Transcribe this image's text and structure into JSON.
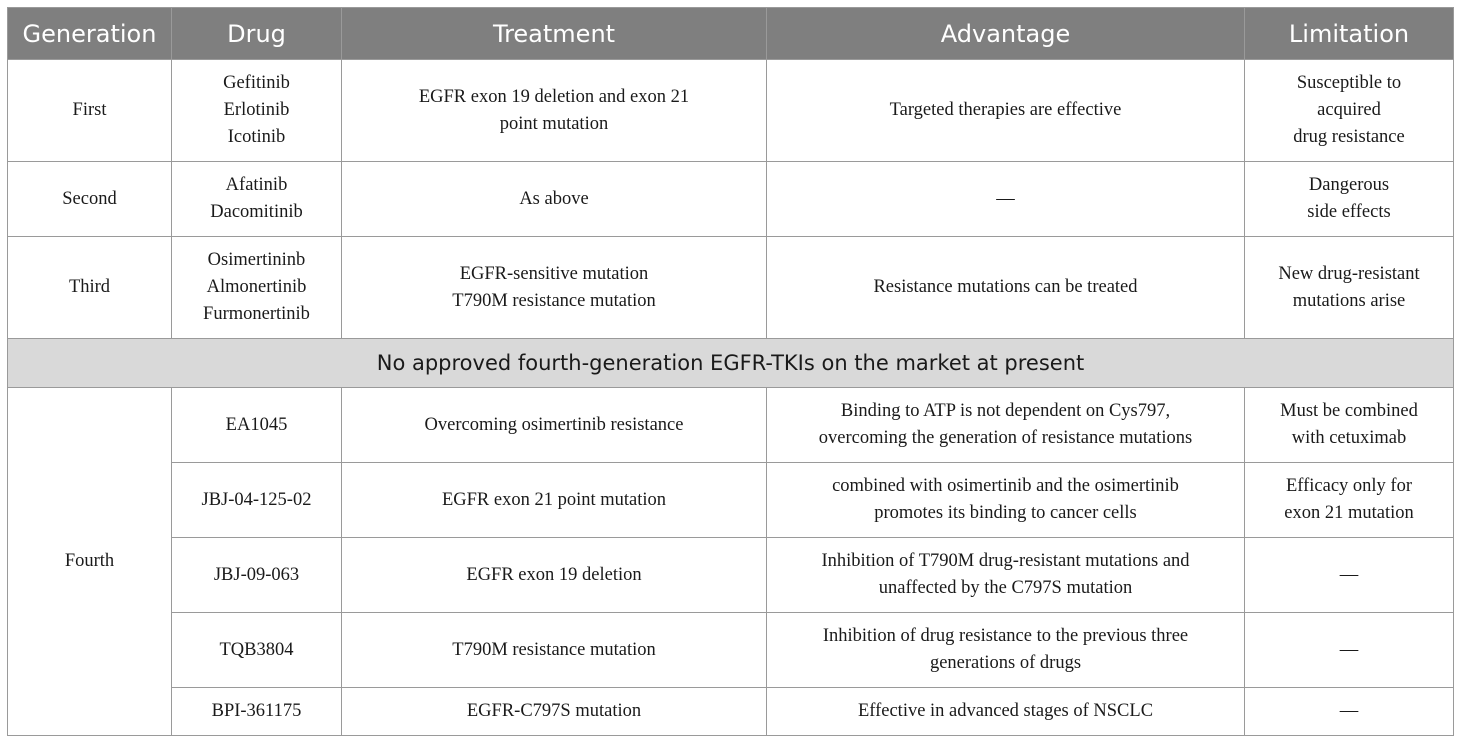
{
  "headers": [
    "Generation",
    "Drug",
    "Treatment",
    "Advantage",
    "Limitation"
  ],
  "rows_top": [
    {
      "generation": "First",
      "drugs": [
        "Gefitinib",
        "Erlotinib",
        "Icotinib"
      ],
      "treatment": [
        "EGFR exon 19 deletion and exon 21",
        "point mutation"
      ],
      "advantage": [
        "Targeted therapies are effective"
      ],
      "limitation": [
        "Susceptible to",
        "acquired",
        "drug resistance"
      ]
    },
    {
      "generation": "Second",
      "drugs": [
        "Afatinib",
        "Dacomitinib"
      ],
      "treatment": [
        "As above"
      ],
      "advantage": [
        "—"
      ],
      "limitation": [
        "Dangerous",
        "side effects"
      ]
    },
    {
      "generation": "Third",
      "drugs": [
        "Osimertininb",
        "Almonertinib",
        "Furmonertinib"
      ],
      "treatment": [
        "EGFR-sensitive mutation",
        "T790M resistance mutation"
      ],
      "advantage": [
        "Resistance mutations can be treated"
      ],
      "limitation": [
        "New drug-resistant",
        "mutations arise"
      ]
    }
  ],
  "banner": "No approved fourth-generation EGFR-TKIs on the market at present",
  "fourth": {
    "generation": "Fourth",
    "rows": [
      {
        "drug": "EA1045",
        "treatment": [
          "Overcoming osimertinib resistance"
        ],
        "advantage": [
          "Binding to ATP is not dependent on Cys797,",
          "overcoming the generation of resistance mutations"
        ],
        "limitation": [
          "Must be combined",
          "with cetuximab"
        ]
      },
      {
        "drug": "JBJ-04-125-02",
        "treatment": [
          "EGFR exon 21 point mutation"
        ],
        "advantage": [
          "combined with osimertinib and the osimertinib",
          "promotes its binding to cancer cells"
        ],
        "limitation": [
          "Efficacy only for",
          "exon 21 mutation"
        ]
      },
      {
        "drug": "JBJ-09-063",
        "treatment": [
          "EGFR exon 19 deletion"
        ],
        "advantage": [
          "Inhibition of T790M drug-resistant mutations and",
          "unaffected by the C797S mutation"
        ],
        "limitation": [
          "—"
        ]
      },
      {
        "drug": "TQB3804",
        "treatment": [
          "T790M resistance mutation"
        ],
        "advantage": [
          "Inhibition of drug resistance to the previous three",
          "generations of drugs"
        ],
        "limitation": [
          "—"
        ]
      },
      {
        "drug": "BPI-361175",
        "treatment": [
          "EGFR-C797S mutation"
        ],
        "advantage": [
          "Effective in advanced stages of NSCLC"
        ],
        "limitation": [
          "—"
        ]
      }
    ]
  }
}
